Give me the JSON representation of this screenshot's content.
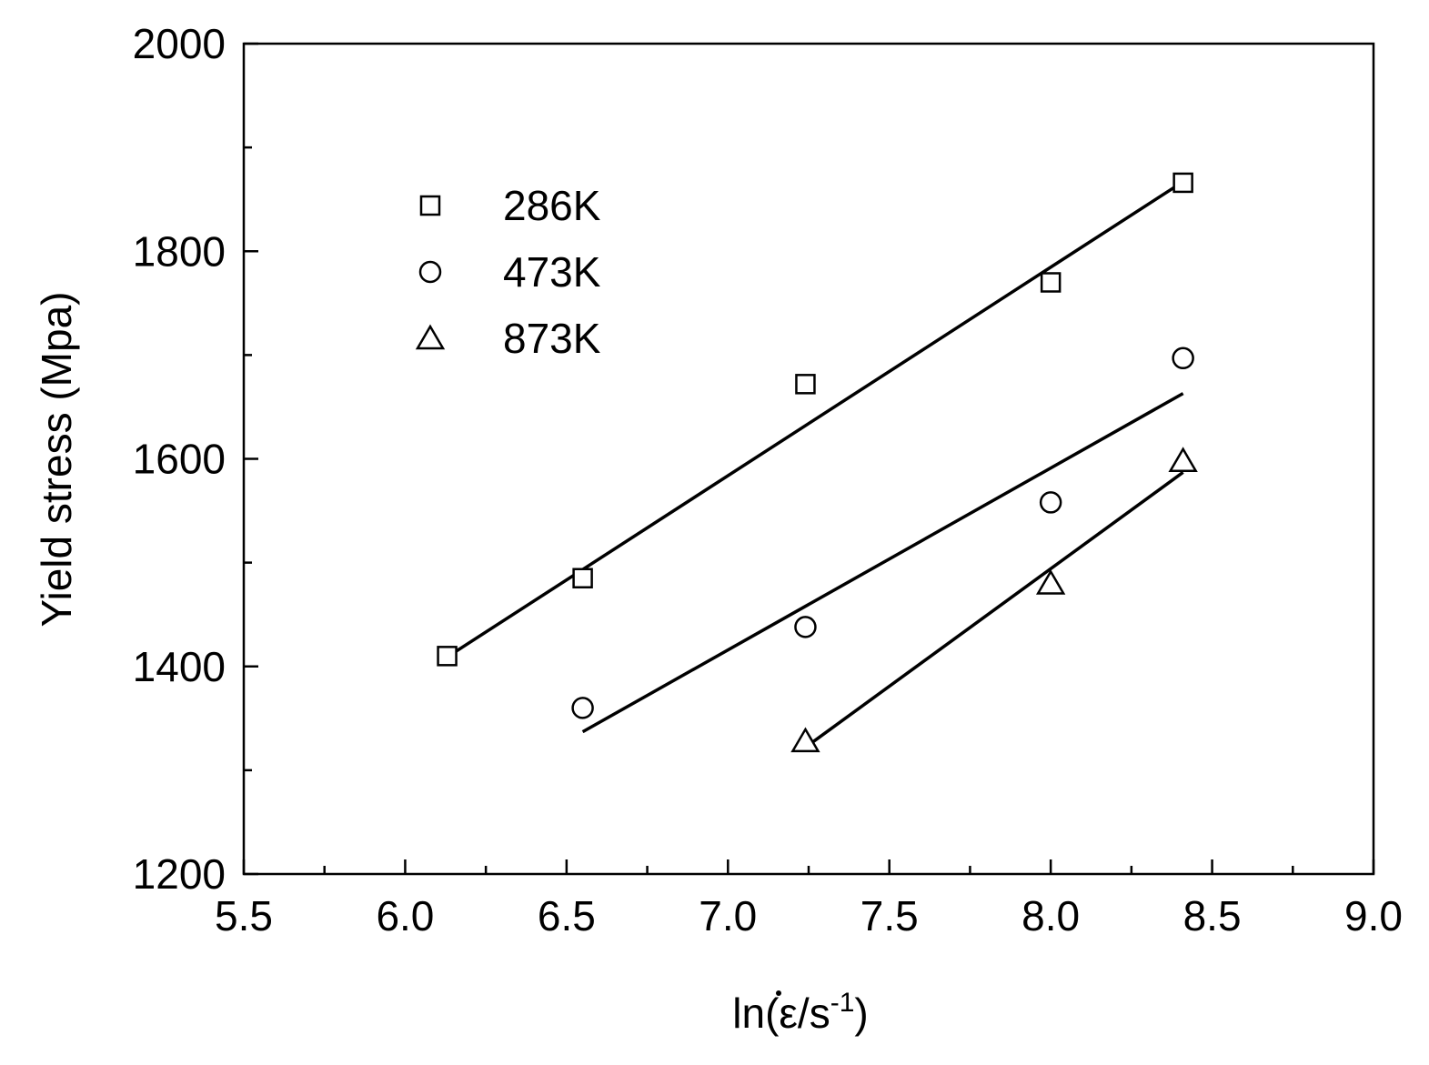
{
  "chart_data": {
    "type": "scatter",
    "title": "",
    "xlabel": "ln(ε̇/s⁻¹)",
    "xlabel_main": "ln(",
    "xlabel_symbol": "ε",
    "xlabel_unit": "/s",
    "xlabel_exp": "-1",
    "xlabel_close": ")",
    "ylabel": "Yield stress (Mpa)",
    "xlim": [
      5.5,
      9.0
    ],
    "ylim": [
      1200,
      2000
    ],
    "x_ticks": [
      "5.5",
      "6.0",
      "6.5",
      "7.0",
      "7.5",
      "8.0",
      "8.5",
      "9.0"
    ],
    "y_ticks": [
      "1200",
      "1400",
      "1600",
      "1800",
      "2000"
    ],
    "grid": false,
    "legend_position": "top-left",
    "series": [
      {
        "name": "286K",
        "marker": "square",
        "x": [
          6.13,
          6.55,
          7.24,
          8.0,
          8.41
        ],
        "y": [
          1410,
          1485,
          1672,
          1770,
          1866
        ],
        "fit": {
          "x": [
            6.12,
            8.41
          ],
          "y": [
            1407,
            1867
          ]
        }
      },
      {
        "name": "473K",
        "marker": "circle",
        "x": [
          6.55,
          7.24,
          8.0,
          8.41
        ],
        "y": [
          1360,
          1438,
          1558,
          1697
        ],
        "fit": {
          "x": [
            6.55,
            8.41
          ],
          "y": [
            1337,
            1663
          ]
        }
      },
      {
        "name": "873K",
        "marker": "triangle",
        "x": [
          7.24,
          8.0,
          8.41
        ],
        "y": [
          1328,
          1480,
          1598
        ],
        "fit": {
          "x": [
            7.24,
            8.41
          ],
          "y": [
            1322,
            1587
          ]
        }
      }
    ]
  }
}
